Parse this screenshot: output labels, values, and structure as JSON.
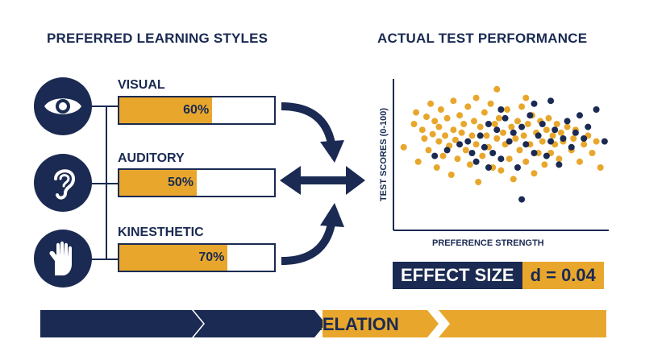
{
  "left_heading": "PREFERRED LEARNING STYLES",
  "right_heading": "ACTUAL TEST PERFORMANCE",
  "styles": [
    {
      "label": "VISUAL",
      "percent": 60,
      "value_text": "60%",
      "icon": "eye-icon"
    },
    {
      "label": "AUDITORY",
      "percent": 50,
      "value_text": "50%",
      "icon": "ear-icon"
    },
    {
      "label": "KINESTHETIC",
      "percent": 70,
      "value_text": "70%",
      "icon": "hand-icon"
    }
  ],
  "chart_data": {
    "type": "scatter",
    "xlabel": "PREFERENCE STRENGTH",
    "ylabel": "TEST SCORES (0-100)",
    "series": [
      {
        "color": "#e8a72c",
        "points": [
          [
            3,
            54
          ],
          [
            8,
            70
          ],
          [
            9,
            78
          ],
          [
            10,
            44
          ],
          [
            12,
            66
          ],
          [
            13,
            60
          ],
          [
            14,
            75
          ],
          [
            15,
            52
          ],
          [
            16,
            84
          ],
          [
            17,
            63
          ],
          [
            18,
            72
          ],
          [
            19,
            40
          ],
          [
            20,
            58
          ],
          [
            20,
            68
          ],
          [
            21,
            80
          ],
          [
            22,
            48
          ],
          [
            23,
            62
          ],
          [
            24,
            74
          ],
          [
            25,
            55
          ],
          [
            26,
            35
          ],
          [
            27,
            66
          ],
          [
            27,
            86
          ],
          [
            28,
            59
          ],
          [
            29,
            46
          ],
          [
            30,
            76
          ],
          [
            31,
            64
          ],
          [
            32,
            70
          ],
          [
            33,
            52
          ],
          [
            34,
            82
          ],
          [
            35,
            42
          ],
          [
            36,
            62
          ],
          [
            37,
            72
          ],
          [
            38,
            56
          ],
          [
            39,
            30
          ],
          [
            40,
            68
          ],
          [
            41,
            48
          ],
          [
            42,
            78
          ],
          [
            43,
            62
          ],
          [
            44,
            54
          ],
          [
            45,
            84
          ],
          [
            46,
            40
          ],
          [
            47,
            70
          ],
          [
            48,
            60
          ],
          [
            49,
            74
          ],
          [
            50,
            38
          ],
          [
            51,
            64
          ],
          [
            52,
            56
          ],
          [
            53,
            80
          ],
          [
            54,
            46
          ],
          [
            55,
            68
          ],
          [
            56,
            32
          ],
          [
            57,
            60
          ],
          [
            58,
            72
          ],
          [
            59,
            52
          ],
          [
            60,
            82
          ],
          [
            61,
            62
          ],
          [
            62,
            44
          ],
          [
            63,
            70
          ],
          [
            64,
            56
          ],
          [
            65,
            76
          ],
          [
            66,
            36
          ],
          [
            67,
            64
          ],
          [
            68,
            50
          ],
          [
            69,
            72
          ],
          [
            70,
            58
          ],
          [
            71,
            42
          ],
          [
            72,
            66
          ],
          [
            73,
            74
          ],
          [
            74,
            50
          ],
          [
            75,
            62
          ],
          [
            76,
            56
          ],
          [
            77,
            70
          ],
          [
            78,
            46
          ],
          [
            79,
            64
          ],
          [
            80,
            58
          ],
          [
            82,
            68
          ],
          [
            84,
            52
          ],
          [
            85,
            60
          ],
          [
            86,
            66
          ],
          [
            88,
            44
          ],
          [
            90,
            56
          ],
          [
            92,
            62
          ],
          [
            94,
            50
          ],
          [
            96,
            58
          ],
          [
            98,
            40
          ],
          [
            48,
            94
          ],
          [
            62,
            88
          ],
          [
            38,
            88
          ]
        ]
      },
      {
        "color": "#1a2a52",
        "points": [
          [
            18,
            48
          ],
          [
            24,
            52
          ],
          [
            30,
            56
          ],
          [
            34,
            58
          ],
          [
            38,
            44
          ],
          [
            40,
            62
          ],
          [
            42,
            54
          ],
          [
            44,
            70
          ],
          [
            46,
            50
          ],
          [
            48,
            66
          ],
          [
            50,
            46
          ],
          [
            52,
            74
          ],
          [
            54,
            58
          ],
          [
            56,
            64
          ],
          [
            58,
            40
          ],
          [
            60,
            68
          ],
          [
            62,
            56
          ],
          [
            64,
            76
          ],
          [
            66,
            50
          ],
          [
            68,
            62
          ],
          [
            70,
            70
          ],
          [
            72,
            48
          ],
          [
            74,
            58
          ],
          [
            76,
            66
          ],
          [
            78,
            42
          ],
          [
            80,
            60
          ],
          [
            82,
            72
          ],
          [
            84,
            54
          ],
          [
            86,
            64
          ],
          [
            88,
            76
          ],
          [
            90,
            60
          ],
          [
            92,
            68
          ],
          [
            100,
            58
          ],
          [
            60,
            18
          ],
          [
            66,
            84
          ],
          [
            74,
            86
          ],
          [
            96,
            80
          ],
          [
            50,
            80
          ],
          [
            44,
            40
          ],
          [
            36,
            50
          ]
        ]
      }
    ]
  },
  "effect": {
    "label": "EFFECT SIZE",
    "value": "d = 0.04"
  },
  "banner": {
    "text": "NO CORRELATION"
  },
  "colors": {
    "navy": "#1a2a52",
    "gold": "#e8a72c"
  }
}
